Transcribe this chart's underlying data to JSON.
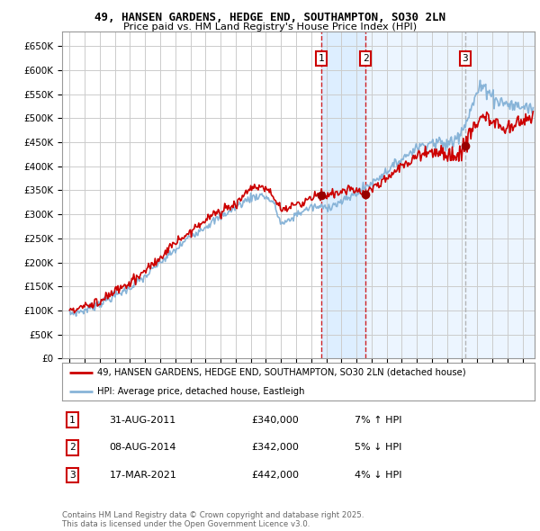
{
  "title1": "49, HANSEN GARDENS, HEDGE END, SOUTHAMPTON, SO30 2LN",
  "title2": "Price paid vs. HM Land Registry's House Price Index (HPI)",
  "ylabel_ticks": [
    "£0",
    "£50K",
    "£100K",
    "£150K",
    "£200K",
    "£250K",
    "£300K",
    "£350K",
    "£400K",
    "£450K",
    "£500K",
    "£550K",
    "£600K",
    "£650K"
  ],
  "ytick_values": [
    0,
    50000,
    100000,
    150000,
    200000,
    250000,
    300000,
    350000,
    400000,
    450000,
    500000,
    550000,
    600000,
    650000
  ],
  "background_color": "#ffffff",
  "plot_bg_color": "#ffffff",
  "grid_color": "#cccccc",
  "red_line_color": "#cc0000",
  "blue_line_color": "#88b4d8",
  "vline_color": "#cc0000",
  "shade_color": "#ddeeff",
  "legend_label_red": "49, HANSEN GARDENS, HEDGE END, SOUTHAMPTON, SO30 2LN (detached house)",
  "legend_label_blue": "HPI: Average price, detached house, Eastleigh",
  "footer_text": "Contains HM Land Registry data © Crown copyright and database right 2025.\nThis data is licensed under the Open Government Licence v3.0.",
  "table_rows": [
    [
      "1",
      "31-AUG-2011",
      "£340,000",
      "7% ↑ HPI"
    ],
    [
      "2",
      "08-AUG-2014",
      "£342,000",
      "5% ↓ HPI"
    ],
    [
      "3",
      "17-MAR-2021",
      "£442,000",
      "4% ↓ HPI"
    ]
  ],
  "sale1_year": 2011.664,
  "sale2_year": 2014.595,
  "sale3_year": 2021.206,
  "sale1_price": 340000,
  "sale2_price": 342000,
  "sale3_price": 442000,
  "x_min": 1994.5,
  "x_max": 2025.8,
  "y_min": 0,
  "y_max": 680000
}
